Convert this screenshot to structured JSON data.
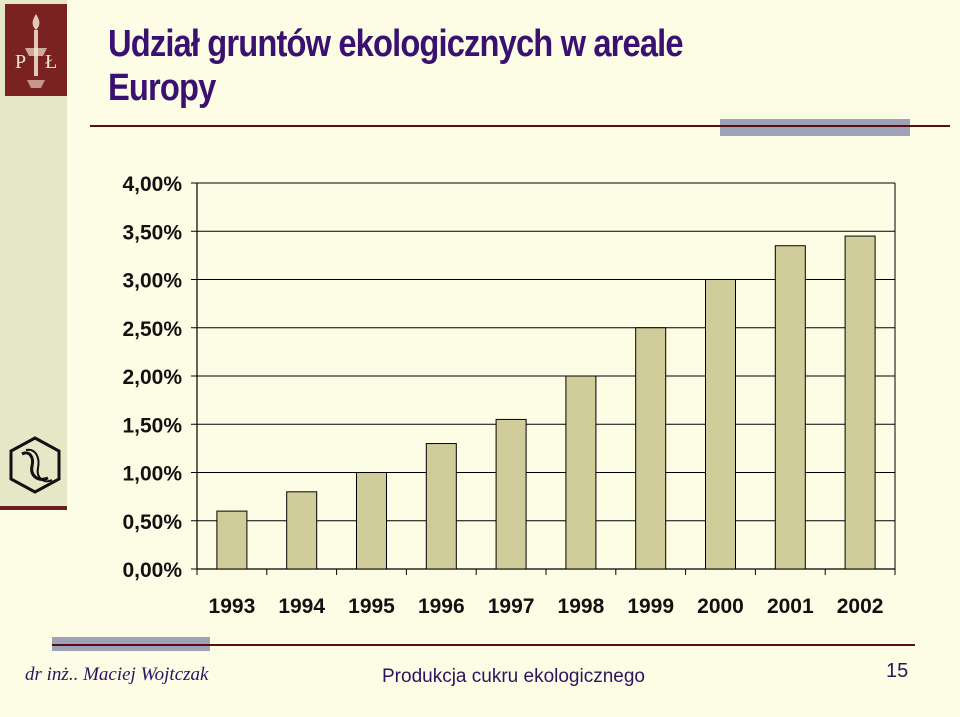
{
  "title": "Udział gruntów ekologicznych w areale Europy",
  "footer": {
    "author": "dr inż.. Maciej Wojtczak",
    "course_title": "Produkcja cukru ekologicznego",
    "page_number": "15"
  },
  "colors": {
    "background": "#fdfde6",
    "title": "#3a1070",
    "bar_fill": "#d0cd9b",
    "bar_stroke": "#000000",
    "rule": "#5a1010",
    "accent_gray": "#9ea2b8"
  },
  "chart_data": {
    "type": "bar",
    "title": "",
    "xlabel": "",
    "ylabel": "",
    "categories": [
      "1993",
      "1994",
      "1995",
      "1996",
      "1997",
      "1998",
      "1999",
      "2000",
      "2001",
      "2002"
    ],
    "values": [
      0.6,
      0.8,
      1.0,
      1.3,
      1.55,
      2.0,
      2.5,
      3.0,
      3.35,
      3.45
    ],
    "unit": "%",
    "ylim": [
      0,
      4
    ],
    "yticks": [
      "0,00%",
      "0,50%",
      "1,00%",
      "1,50%",
      "2,00%",
      "2,50%",
      "3,00%",
      "3,50%",
      "4,00%"
    ],
    "grid": true,
    "legend": "none"
  }
}
